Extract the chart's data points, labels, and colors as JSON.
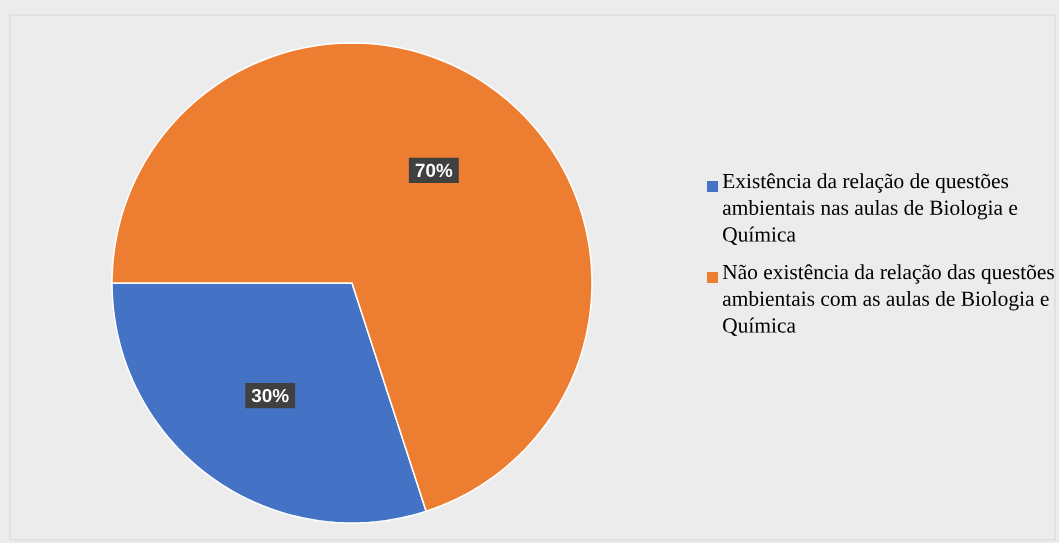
{
  "chart_data": {
    "type": "pie",
    "categories": [
      "Existência da relação de questões ambientais nas aulas de Biologia e Química",
      "Não existência da relação das questões ambientais com as aulas de Biologia e Química"
    ],
    "values": [
      30,
      70
    ],
    "colors": [
      "#4472c4",
      "#ed7d31"
    ],
    "value_labels": [
      "30%",
      "70%"
    ],
    "legend": "right"
  }
}
